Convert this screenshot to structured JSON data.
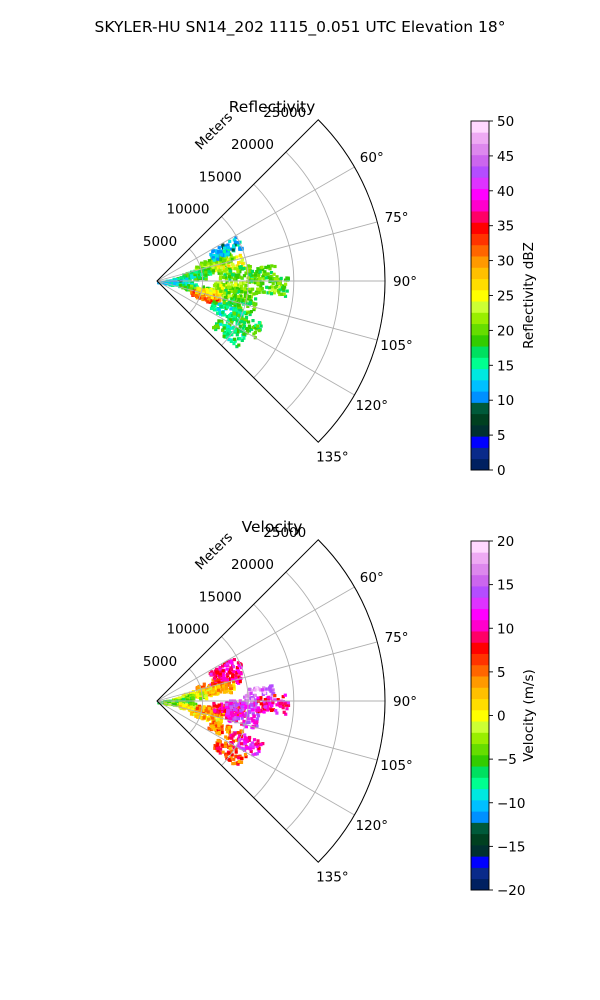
{
  "figure": {
    "suptitle": "SKYLER-HU  SN14_202  1115_0.051 UTC Elevation 18°"
  },
  "chart_data": [
    {
      "type": "polar-sector",
      "title": "Reflectivity",
      "range_axis_label": "Meters",
      "range_ticks": [
        5000,
        10000,
        15000,
        20000,
        25000
      ],
      "range_tick_labels": [
        "5000",
        "10000",
        "15000",
        "20000",
        "25000"
      ],
      "range_max": 25000,
      "azimuth_range_deg": [
        45,
        135
      ],
      "azimuth_ticks": [
        60,
        75,
        90,
        105,
        120,
        135
      ],
      "azimuth_tick_labels": [
        "60°",
        "75°",
        "90°",
        "105°",
        "120°",
        "135°"
      ],
      "grid": true,
      "colorbar": {
        "label": "Reflectivity dBZ",
        "range": [
          0,
          50
        ],
        "ticks": [
          0,
          5,
          10,
          15,
          20,
          25,
          30,
          35,
          40,
          45,
          50
        ],
        "tick_labels": [
          "0",
          "5",
          "10",
          "15",
          "20",
          "25",
          "30",
          "35",
          "40",
          "45",
          "50"
        ],
        "colors": [
          "#002060",
          "#0a2a8a",
          "#0000ff",
          "#003030",
          "#004020",
          "#005a3a",
          "#0090ff",
          "#00c0ff",
          "#00e8e0",
          "#00ff90",
          "#00e060",
          "#33cc00",
          "#66dd00",
          "#99ee00",
          "#ccff33",
          "#ffff00",
          "#ffdd00",
          "#ffc000",
          "#ff9900",
          "#ff6600",
          "#ff3300",
          "#ff0000",
          "#ff0066",
          "#ff00cc",
          "#ff00ff",
          "#dd33ff",
          "#b44dff",
          "#cc66ee",
          "#dd88ee",
          "#eeaaf4",
          "#ffd8ff"
        ]
      },
      "echo_cells": [
        {
          "range_m": 6200,
          "az_deg": 72,
          "value": 23
        },
        {
          "range_m": 7800,
          "az_deg": 76,
          "value": 25
        },
        {
          "range_m": 6800,
          "az_deg": 70,
          "value": 21
        },
        {
          "range_m": 4500,
          "az_deg": 77,
          "value": 18
        },
        {
          "range_m": 3500,
          "az_deg": 82,
          "value": 17
        },
        {
          "range_m": 2000,
          "az_deg": 86,
          "value": 14
        },
        {
          "range_m": 1200,
          "az_deg": 90,
          "value": 12
        },
        {
          "range_m": 2500,
          "az_deg": 97,
          "value": 14
        },
        {
          "range_m": 4200,
          "az_deg": 100,
          "value": 19
        },
        {
          "range_m": 5500,
          "az_deg": 107,
          "value": 32
        },
        {
          "range_m": 6000,
          "az_deg": 101,
          "value": 26
        },
        {
          "range_m": 7800,
          "az_deg": 94,
          "value": 22
        },
        {
          "range_m": 9000,
          "az_deg": 98,
          "value": 20
        },
        {
          "range_m": 9200,
          "az_deg": 106,
          "value": 18
        },
        {
          "range_m": 8200,
          "az_deg": 113,
          "value": 15
        },
        {
          "range_m": 10500,
          "az_deg": 116,
          "value": 18
        },
        {
          "range_m": 9500,
          "az_deg": 125,
          "value": 17
        },
        {
          "range_m": 8500,
          "az_deg": 83,
          "value": 20
        },
        {
          "range_m": 11500,
          "az_deg": 86,
          "value": 19
        },
        {
          "range_m": 12500,
          "az_deg": 92,
          "value": 20
        },
        {
          "range_m": 8200,
          "az_deg": 64,
          "value": 12
        }
      ]
    },
    {
      "type": "polar-sector",
      "title": "Velocity",
      "range_axis_label": "Meters",
      "range_ticks": [
        5000,
        10000,
        15000,
        20000,
        25000
      ],
      "range_tick_labels": [
        "5000",
        "10000",
        "15000",
        "20000",
        "25000"
      ],
      "range_max": 25000,
      "azimuth_range_deg": [
        45,
        135
      ],
      "azimuth_ticks": [
        60,
        75,
        90,
        105,
        120,
        135
      ],
      "azimuth_tick_labels": [
        "60°",
        "75°",
        "90°",
        "105°",
        "120°",
        "135°"
      ],
      "grid": true,
      "colorbar": {
        "label": "Velocity (m/s)",
        "range": [
          -20,
          20
        ],
        "ticks": [
          -20,
          -15,
          -10,
          -5,
          0,
          5,
          10,
          15,
          20
        ],
        "tick_labels": [
          "−20",
          "−15",
          "−10",
          "−5",
          "0",
          "5",
          "10",
          "15",
          "20"
        ],
        "colors": [
          "#002060",
          "#0a2a8a",
          "#0000ff",
          "#003030",
          "#004020",
          "#005a3a",
          "#0090ff",
          "#00c0ff",
          "#00e8e0",
          "#00ff90",
          "#00e060",
          "#33cc00",
          "#66dd00",
          "#99ee00",
          "#ccff33",
          "#ffff00",
          "#ffdd00",
          "#ffc000",
          "#ff9900",
          "#ff6600",
          "#ff3300",
          "#ff0000",
          "#ff0066",
          "#ff00cc",
          "#ff00ff",
          "#dd33ff",
          "#b44dff",
          "#cc66ee",
          "#dd88ee",
          "#eeaaf4",
          "#ffd8ff"
        ]
      },
      "echo_cells": [
        {
          "range_m": 6200,
          "az_deg": 72,
          "value": 4
        },
        {
          "range_m": 7800,
          "az_deg": 72,
          "value": 9
        },
        {
          "range_m": 6800,
          "az_deg": 78,
          "value": 3
        },
        {
          "range_m": 4500,
          "az_deg": 77,
          "value": 1
        },
        {
          "range_m": 3500,
          "az_deg": 82,
          "value": -2
        },
        {
          "range_m": 2000,
          "az_deg": 86,
          "value": -5
        },
        {
          "range_m": 1200,
          "az_deg": 90,
          "value": -5
        },
        {
          "range_m": 2500,
          "az_deg": 97,
          "value": -3
        },
        {
          "range_m": 4200,
          "az_deg": 100,
          "value": 1
        },
        {
          "range_m": 5500,
          "az_deg": 106,
          "value": 2
        },
        {
          "range_m": 6000,
          "az_deg": 99,
          "value": 4
        },
        {
          "range_m": 7800,
          "az_deg": 95,
          "value": 8
        },
        {
          "range_m": 9200,
          "az_deg": 93,
          "value": 13
        },
        {
          "range_m": 9300,
          "az_deg": 101,
          "value": 12
        },
        {
          "range_m": 8000,
          "az_deg": 113,
          "value": 5
        },
        {
          "range_m": 10500,
          "az_deg": 115,
          "value": 11
        },
        {
          "range_m": 9500,
          "az_deg": 125,
          "value": 6
        },
        {
          "range_m": 11000,
          "az_deg": 86,
          "value": 16
        },
        {
          "range_m": 12500,
          "az_deg": 91,
          "value": 10
        },
        {
          "range_m": 8200,
          "az_deg": 64,
          "value": 10
        }
      ]
    }
  ]
}
